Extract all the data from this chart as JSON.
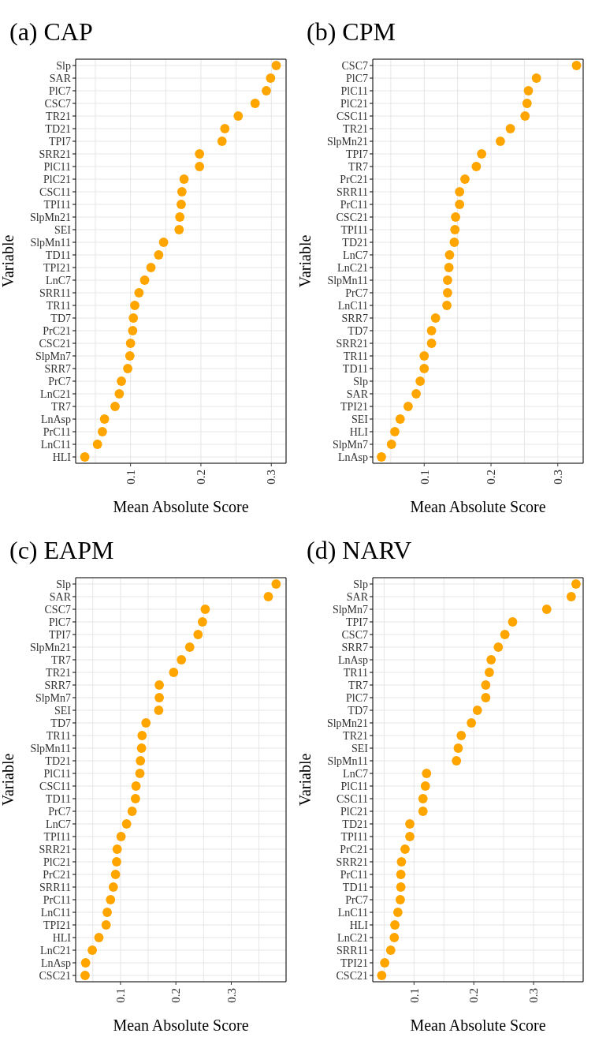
{
  "chart_data": [
    {
      "type": "scatter",
      "orientation": "horizontal",
      "title": "(a) CAP",
      "xlabel": "Mean Absolute Score",
      "ylabel": "Variable",
      "color": "#ffa500",
      "marker": "circle",
      "grid": true,
      "legend": false,
      "categories": [
        "Slp",
        "SAR",
        "PlC7",
        "CSC7",
        "TR21",
        "TD21",
        "TPI7",
        "SRR21",
        "PlC11",
        "PlC21",
        "CSC11",
        "TPI11",
        "SlpMn21",
        "SEI",
        "SlpMn11",
        "TD11",
        "TPI21",
        "LnC7",
        "SRR11",
        "TR11",
        "TD7",
        "PrC21",
        "CSC21",
        "SlpMn7",
        "SRR7",
        "PrC7",
        "LnC21",
        "TR7",
        "LnAsp",
        "PrC11",
        "LnC11",
        "HLI"
      ],
      "values": [
        0.307,
        0.299,
        0.293,
        0.277,
        0.253,
        0.234,
        0.23,
        0.198,
        0.198,
        0.176,
        0.173,
        0.172,
        0.17,
        0.169,
        0.147,
        0.14,
        0.129,
        0.12,
        0.112,
        0.106,
        0.104,
        0.103,
        0.1,
        0.099,
        0.096,
        0.087,
        0.084,
        0.078,
        0.063,
        0.06,
        0.053,
        0.035
      ],
      "xlim": [
        0.022,
        0.321
      ],
      "xticks": [
        {
          "value": 0.05,
          "label": null
        },
        0.1,
        {
          "value": 0.15,
          "label": null
        },
        0.2,
        {
          "value": 0.25,
          "label": null
        },
        0.3
      ]
    },
    {
      "type": "scatter",
      "orientation": "horizontal",
      "title": "(b) CPM",
      "xlabel": "Mean Absolute Score",
      "ylabel": "Variable",
      "color": "#ffa500",
      "marker": "circle",
      "grid": true,
      "legend": false,
      "categories": [
        "CSC7",
        "PlC7",
        "PlC11",
        "PlC21",
        "CSC11",
        "TR21",
        "SlpMn21",
        "TPI7",
        "TR7",
        "PrC21",
        "SRR11",
        "PrC11",
        "CSC21",
        "TPI11",
        "TD21",
        "LnC7",
        "LnC21",
        "SlpMn11",
        "PrC7",
        "LnC11",
        "SRR7",
        "TD7",
        "SRR21",
        "TR11",
        "TD11",
        "Slp",
        "SAR",
        "TPI21",
        "SEI",
        "HLI",
        "SlpMn7",
        "LnAsp"
      ],
      "values": [
        0.328,
        0.268,
        0.256,
        0.254,
        0.251,
        0.229,
        0.214,
        0.186,
        0.178,
        0.161,
        0.153,
        0.153,
        0.147,
        0.146,
        0.145,
        0.138,
        0.137,
        0.135,
        0.135,
        0.134,
        0.117,
        0.111,
        0.111,
        0.1,
        0.1,
        0.094,
        0.088,
        0.076,
        0.064,
        0.056,
        0.051,
        0.036
      ],
      "xlim": [
        0.023,
        0.338
      ],
      "xticks": [
        {
          "value": 0.05,
          "label": null
        },
        0.1,
        {
          "value": 0.15,
          "label": null
        },
        0.2,
        {
          "value": 0.25,
          "label": null
        },
        0.3
      ]
    },
    {
      "type": "scatter",
      "orientation": "horizontal",
      "title": "(c) EAPM",
      "xlabel": "Mean Absolute Score",
      "ylabel": "Variable",
      "color": "#ffa500",
      "marker": "circle",
      "grid": true,
      "legend": false,
      "categories": [
        "Slp",
        "SAR",
        "CSC7",
        "PlC7",
        "TPI7",
        "SlpMn21",
        "TR7",
        "TR21",
        "SRR7",
        "SlpMn7",
        "SEI",
        "TD7",
        "TR11",
        "SlpMn11",
        "TD21",
        "PlC11",
        "CSC11",
        "TD11",
        "PrC7",
        "LnC7",
        "TPI11",
        "SRR21",
        "PlC21",
        "PrC21",
        "SRR11",
        "PrC11",
        "LnC11",
        "TPI21",
        "HLI",
        "LnC21",
        "LnAsp",
        "CSC21"
      ],
      "values": [
        0.381,
        0.367,
        0.253,
        0.248,
        0.24,
        0.225,
        0.21,
        0.196,
        0.17,
        0.17,
        0.169,
        0.146,
        0.139,
        0.138,
        0.136,
        0.135,
        0.128,
        0.127,
        0.121,
        0.111,
        0.101,
        0.094,
        0.093,
        0.091,
        0.087,
        0.082,
        0.076,
        0.074,
        0.061,
        0.049,
        0.037,
        0.036
      ],
      "xlim": [
        0.019,
        0.399
      ],
      "xticks": [
        {
          "value": 0.05,
          "label": null
        },
        0.1,
        {
          "value": 0.15,
          "label": null
        },
        0.2,
        {
          "value": 0.25,
          "label": null
        },
        0.3,
        {
          "value": 0.35,
          "label": null
        }
      ]
    },
    {
      "type": "scatter",
      "orientation": "horizontal",
      "title": "(d) NARV",
      "xlabel": "Mean Absolute Score",
      "ylabel": "Variable",
      "color": "#ffa500",
      "marker": "circle",
      "grid": true,
      "legend": false,
      "categories": [
        "Slp",
        "SAR",
        "SlpMn7",
        "TPI7",
        "CSC7",
        "SRR7",
        "LnAsp",
        "TR11",
        "TR7",
        "PlC7",
        "TD7",
        "SlpMn21",
        "TR21",
        "SEI",
        "SlpMn11",
        "LnC7",
        "PlC11",
        "CSC11",
        "PlC21",
        "TD21",
        "TPI11",
        "PrC21",
        "SRR21",
        "PrC11",
        "TD11",
        "PrC7",
        "LnC11",
        "HLI",
        "LnC21",
        "SRR11",
        "TPI21",
        "CSC21"
      ],
      "values": [
        0.371,
        0.363,
        0.322,
        0.265,
        0.252,
        0.241,
        0.229,
        0.226,
        0.22,
        0.22,
        0.206,
        0.196,
        0.179,
        0.174,
        0.171,
        0.121,
        0.119,
        0.115,
        0.115,
        0.093,
        0.093,
        0.085,
        0.079,
        0.078,
        0.078,
        0.077,
        0.073,
        0.068,
        0.067,
        0.061,
        0.051,
        0.046
      ],
      "xlim": [
        0.031,
        0.383
      ],
      "xticks": [
        {
          "value": 0.05,
          "label": null
        },
        0.1,
        {
          "value": 0.15,
          "label": null
        },
        0.2,
        {
          "value": 0.25,
          "label": null
        },
        0.3,
        {
          "value": 0.35,
          "label": null
        }
      ]
    }
  ]
}
